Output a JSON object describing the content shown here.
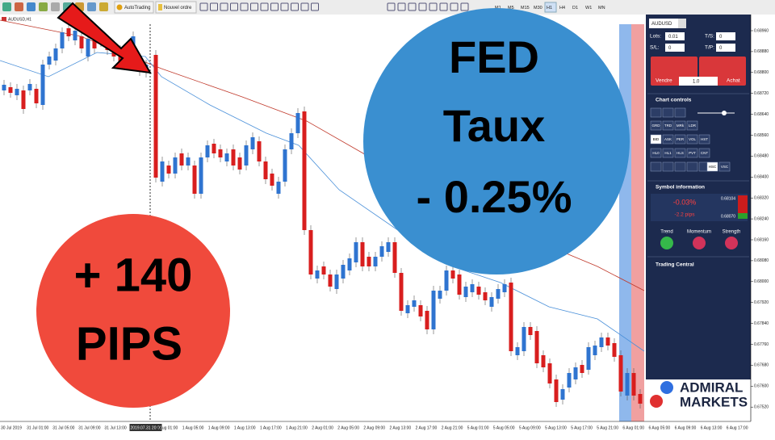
{
  "toolbar": {
    "buttons": [
      "AutoTrading",
      "Nouvel ordre"
    ],
    "timeframes": [
      "M1",
      "M5",
      "M15",
      "M30",
      "H1",
      "H4",
      "D1",
      "W1",
      "MN"
    ]
  },
  "chart": {
    "tab": "AUDUSD,H1",
    "price_labels": [
      "0.68960",
      "0.68880",
      "0.68800",
      "0.68720",
      "0.68640",
      "0.68560",
      "0.68480",
      "0.68400",
      "0.68320",
      "0.68240",
      "0.68160",
      "0.68080",
      "0.68000",
      "0.67920",
      "0.67840",
      "0.67760",
      "0.67680",
      "0.67600",
      "0.67520"
    ],
    "time_labels": [
      "30 Jul 2019",
      "31 Jul 01:00",
      "31 Jul 05:00",
      "31 Jul 09:00",
      "31 Jul 13:00",
      "2019.07.31 20:00",
      "1 Aug 01:00",
      "1 Aug 05:00",
      "1 Aug 09:00",
      "1 Aug 13:00",
      "1 Aug 17:00",
      "1 Aug 21:00",
      "2 Aug 01:00",
      "2 Aug 05:00",
      "2 Aug 09:00",
      "2 Aug 13:00",
      "2 Aug 17:00",
      "2 Aug 21:00",
      "5 Aug 01:00",
      "5 Aug 05:00",
      "5 Aug 09:00",
      "5 Aug 13:00",
      "5 Aug 17:00",
      "5 Aug 21:00",
      "6 Aug 01:00",
      "6 Aug 05:00",
      "6 Aug 09:00",
      "6 Aug 13:00",
      "6 Aug 17:00"
    ]
  },
  "panel": {
    "symbol": "AUDUSD",
    "lots_label": "Lots:",
    "lots": "0.01",
    "ts_label": "T/S:",
    "ts": "0",
    "sl_label": "S/L:",
    "sl": "0",
    "tp_label": "T/P:",
    "tp": "0",
    "sell_label": "Vendre",
    "buy_label": "Achat",
    "amount": "1.0",
    "chart_controls": "Chart controls",
    "buttons": [
      "GRD",
      "TRD",
      "MRk",
      "LDR",
      "BID",
      "ASK",
      "PER",
      "VOL",
      "HST",
      "HL0",
      "HL1",
      "HLS",
      "PVT",
      "CNT",
      "HSC",
      "VSC"
    ],
    "symbol_information": "Symbol information",
    "change_pct": "-0.03%",
    "change_pips": "-2.2 pips",
    "high": "0.68104",
    "low": "0.68070",
    "indicators": [
      "Trend",
      "Momentum",
      "Strength"
    ],
    "trading_central": "Trading Central"
  },
  "overlays": {
    "fed": "FED",
    "taux": "Taux",
    "rate": "- 0.25%",
    "gain": "+ 140",
    "pips": "PIPS"
  },
  "logo": {
    "line1": "ADMIRAL",
    "line2": "MARKETS"
  }
}
